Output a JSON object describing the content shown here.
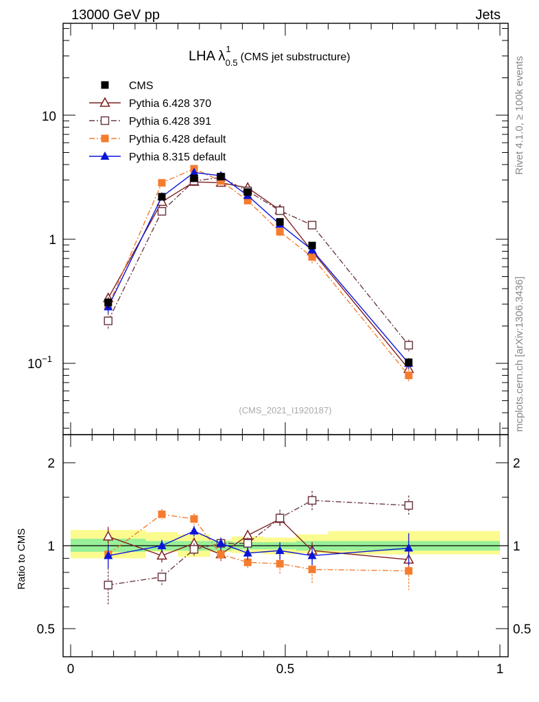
{
  "header": {
    "left": "13000 GeV pp",
    "right": "Jets"
  },
  "side_labels": {
    "rivet": "Rivet 4.1.0, ≥ 100k events",
    "mcplots": "mcplots.cern.ch [arXiv:1306.3436]"
  },
  "analysis_id": "(CMS_2021_I1920187)",
  "chart_data": [
    {
      "type": "line",
      "scale": "log",
      "title": "LHA λ",
      "title_sup": "1",
      "title_sub": "0.5",
      "subtitle": "(CMS jet substructure)",
      "ylim": [
        0.03,
        70
      ],
      "xlim": [
        0,
        1
      ],
      "ytick_labels": {
        "ten": "10",
        "one": "1",
        "tenth_base": "10",
        "tenth_exp": "−1"
      },
      "x": [
        0.0875,
        0.2125,
        0.2875,
        0.35,
        0.4125,
        0.4875,
        0.5625,
        0.7875
      ],
      "reference": {
        "name": "CMS",
        "values": [
          0.31,
          2.2,
          3.1,
          3.2,
          2.4,
          1.38,
          0.89,
          0.102
        ],
        "errors": [
          0.03,
          0.12,
          0.12,
          0.12,
          0.1,
          0.08,
          0.05,
          0.008
        ]
      },
      "series": [
        {
          "name": "Pythia 6.428 370",
          "color": "#7f1f1f",
          "marker": "triangle-open",
          "dash": "",
          "values": [
            0.335,
            2.0,
            2.9,
            2.85,
            2.6,
            1.72,
            0.8,
            0.09
          ],
          "errors": [
            0.03,
            0.1,
            0.1,
            0.1,
            0.1,
            0.08,
            0.06,
            0.01
          ]
        },
        {
          "name": "Pythia 6.428 391",
          "color": "#6b3a42",
          "marker": "square-open",
          "dash": "8,3,2,3",
          "values": [
            0.22,
            1.68,
            2.95,
            3.15,
            2.45,
            1.7,
            1.3,
            0.14
          ],
          "errors": [
            0.035,
            0.12,
            0.12,
            0.12,
            0.1,
            0.1,
            0.1,
            0.015
          ]
        },
        {
          "name": "Pythia 6.428 default",
          "color": "#f57c2f",
          "marker": "square",
          "dash": "8,3,2,3",
          "values": [
            0.29,
            2.85,
            3.7,
            2.95,
            2.05,
            1.15,
            0.72,
            0.08
          ],
          "errors": [
            0.03,
            0.12,
            0.12,
            0.12,
            0.1,
            0.1,
            0.08,
            0.01
          ]
        },
        {
          "name": "Pythia 8.315 default",
          "color": "#0a14d8",
          "marker": "triangle",
          "dash": "",
          "values": [
            0.285,
            2.2,
            3.45,
            3.25,
            2.25,
            1.32,
            0.82,
            0.1
          ],
          "errors": [
            0.03,
            0.1,
            0.1,
            0.1,
            0.1,
            0.08,
            0.06,
            0.01
          ]
        }
      ]
    },
    {
      "type": "line",
      "scale": "log",
      "ylabel": "Ratio to CMS",
      "xlabel": "",
      "ylim": [
        0.4,
        2.3
      ],
      "xlim": [
        0,
        1
      ],
      "yticks": [
        0.5,
        1,
        2
      ],
      "ytick_labels": [
        "0.5",
        "1",
        "2"
      ],
      "xticks": [
        0,
        0.5,
        1
      ],
      "xtick_labels": [
        "0",
        "0.5",
        "1"
      ],
      "bins": [
        0,
        0.175,
        0.25,
        0.325,
        0.375,
        0.45,
        0.525,
        0.6,
        1
      ],
      "band_stat": [
        [
          0.95,
          1.06
        ],
        [
          0.96,
          1.04
        ],
        [
          0.96,
          1.04
        ],
        [
          0.96,
          1.04
        ],
        [
          0.97,
          1.03
        ],
        [
          0.97,
          1.03
        ],
        [
          0.96,
          1.04
        ],
        [
          0.96,
          1.04
        ]
      ],
      "band_total": [
        [
          0.9,
          1.14
        ],
        [
          0.95,
          1.12
        ],
        [
          0.91,
          1.1
        ],
        [
          0.95,
          1.05
        ],
        [
          0.94,
          1.08
        ],
        [
          0.93,
          1.07
        ],
        [
          0.94,
          1.1
        ],
        [
          0.93,
          1.13
        ]
      ],
      "x": [
        0.0875,
        0.2125,
        0.2875,
        0.35,
        0.4125,
        0.4875,
        0.5625,
        0.7875
      ],
      "series": [
        {
          "name": "Pythia 6.428 370",
          "values": [
            1.08,
            0.92,
            1.02,
            0.93,
            1.09,
            1.25,
            0.96,
            0.89
          ],
          "errors": [
            0.09,
            0.05,
            0.05,
            0.05,
            0.05,
            0.07,
            0.07,
            0.08
          ]
        },
        {
          "name": "Pythia 6.428 391",
          "values": [
            0.72,
            0.77,
            0.97,
            1.02,
            1.02,
            1.26,
            1.46,
            1.4
          ],
          "errors": [
            0.11,
            0.05,
            0.05,
            0.05,
            0.05,
            0.09,
            0.12,
            0.12
          ]
        },
        {
          "name": "Pythia 6.428 default",
          "values": [
            0.93,
            1.3,
            1.25,
            0.93,
            0.87,
            0.86,
            0.82,
            0.81
          ],
          "errors": [
            0.09,
            0.06,
            0.06,
            0.05,
            0.05,
            0.07,
            0.09,
            0.12
          ]
        },
        {
          "name": "Pythia 8.315 default",
          "values": [
            0.92,
            1.0,
            1.13,
            1.02,
            0.94,
            0.96,
            0.92,
            0.98
          ],
          "errors": [
            0.09,
            0.05,
            0.05,
            0.05,
            0.05,
            0.07,
            0.07,
            0.13
          ]
        }
      ]
    }
  ]
}
